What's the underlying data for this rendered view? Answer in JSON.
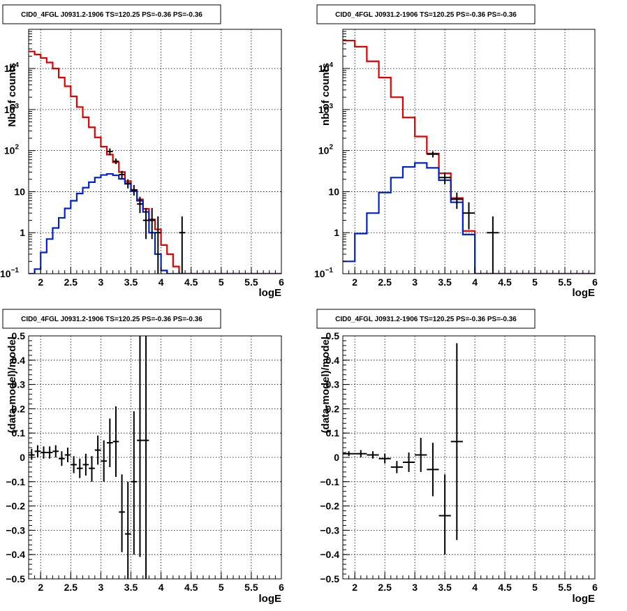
{
  "chart_data": [
    {
      "type": "line",
      "panel": "top-left",
      "title": "CID0_4FGL J0931.2-1906 TS=120.25 PS=-0.36 PS=-0.36",
      "xlabel": "logE",
      "ylabel": "Nb of counts",
      "xlim": [
        1.8,
        6.0
      ],
      "ylim": [
        0.1,
        90000
      ],
      "yscale": "log",
      "grid": true,
      "xticks": [
        {
          "v": 2,
          "label": "2"
        },
        {
          "v": 2.5,
          "label": "2.5"
        },
        {
          "v": 3,
          "label": "3"
        },
        {
          "v": 3.5,
          "label": "3.5"
        },
        {
          "v": 4,
          "label": "4"
        },
        {
          "v": 4.5,
          "label": "4.5"
        },
        {
          "v": 5,
          "label": "5"
        },
        {
          "v": 5.5,
          "label": "5.5"
        },
        {
          "v": 6,
          "label": "6"
        }
      ],
      "yticks": [
        {
          "v": 0.1,
          "label": "10",
          "sup": "−1"
        },
        {
          "v": 1,
          "label": "1"
        },
        {
          "v": 10,
          "label": "10"
        },
        {
          "v": 100,
          "label": "10",
          "sup": "2"
        },
        {
          "v": 1000,
          "label": "10",
          "sup": "3"
        },
        {
          "v": 10000,
          "label": "10",
          "sup": "4"
        }
      ],
      "series": [
        {
          "color": "#e00000",
          "style": "step",
          "x0": 1.8,
          "dx": 0.1,
          "values": [
            26000,
            22000,
            18000,
            14000,
            10000,
            6000,
            3700,
            2100,
            1150,
            650,
            370,
            210,
            125,
            80,
            52,
            30,
            18,
            11,
            6.5,
            3.8,
            2.1,
            1.2,
            0.5,
            0.3,
            0.15,
            0.1,
            0.1,
            0.1,
            0.1,
            0.1,
            0.1,
            0.1,
            0.1,
            0.1,
            0.1,
            0.1,
            0.1,
            0.1,
            0.1,
            0.1,
            0.1,
            0.1
          ]
        },
        {
          "color": "#0022cc",
          "style": "step",
          "x0": 1.8,
          "dx": 0.1,
          "values": [
            0.04,
            0.13,
            0.33,
            0.7,
            1.3,
            2.3,
            3.9,
            6.0,
            9.0,
            12.5,
            17.0,
            22.0,
            25.5,
            27.0,
            25.0,
            20.5,
            15.5,
            10.2,
            6.0,
            3.2,
            1.0,
            0.3,
            0.12,
            0.05,
            0.05,
            0.1,
            0.1,
            0.1,
            0.1,
            0.1,
            0.1,
            0.1,
            0.1,
            0.1,
            0.1,
            0.1,
            0.1,
            0.1,
            0.1,
            0.1,
            0.1,
            0.1
          ]
        },
        {
          "color": "#000000",
          "style": "errorbar",
          "xerr": 0.05,
          "points": [
            {
              "x": 3.15,
              "y": 95,
              "lo": 77,
              "hi": 113
            },
            {
              "x": 3.25,
              "y": 55,
              "lo": 47,
              "hi": 64
            },
            {
              "x": 3.35,
              "y": 26,
              "lo": 21,
              "hi": 32
            },
            {
              "x": 3.45,
              "y": 16,
              "lo": 12,
              "hi": 20
            },
            {
              "x": 3.55,
              "y": 11,
              "lo": 8,
              "hi": 14.5
            },
            {
              "x": 3.65,
              "y": 5,
              "lo": 3,
              "hi": 7.5
            },
            {
              "x": 3.75,
              "y": 2,
              "lo": 0.7,
              "hi": 4
            },
            {
              "x": 3.85,
              "y": 2,
              "lo": 0.7,
              "hi": 4
            },
            {
              "x": 3.95,
              "y": 1,
              "lo": 0.1,
              "hi": 2.5
            },
            {
              "x": 4.35,
              "y": 1,
              "lo": 0.1,
              "hi": 2.5
            }
          ]
        }
      ]
    },
    {
      "type": "line",
      "panel": "top-right",
      "title": "CID0_4FGL J0931.2-1906 TS=120.25 PS=-0.36 PS=-0.36",
      "xlabel": "logE",
      "ylabel": "nb of counts",
      "xlim": [
        1.8,
        6.0
      ],
      "ylim": [
        0.1,
        90000
      ],
      "yscale": "log",
      "grid": true,
      "xticks": [
        {
          "v": 2,
          "label": "2"
        },
        {
          "v": 2.5,
          "label": "2.5"
        },
        {
          "v": 3,
          "label": "3"
        },
        {
          "v": 3.5,
          "label": "3.5"
        },
        {
          "v": 4,
          "label": "4"
        },
        {
          "v": 4.5,
          "label": "4.5"
        },
        {
          "v": 5,
          "label": "5"
        },
        {
          "v": 5.5,
          "label": "5.5"
        },
        {
          "v": 6,
          "label": "6"
        }
      ],
      "yticks": [
        {
          "v": 0.1,
          "label": "10",
          "sup": "−1"
        },
        {
          "v": 1,
          "label": "1"
        },
        {
          "v": 10,
          "label": "10"
        },
        {
          "v": 100,
          "label": "10",
          "sup": "2"
        },
        {
          "v": 1000,
          "label": "10",
          "sup": "3"
        },
        {
          "v": 10000,
          "label": "10",
          "sup": "4"
        }
      ],
      "series": [
        {
          "color": "#e00000",
          "style": "step",
          "x0": 1.8,
          "dx": 0.2,
          "values": [
            48000,
            34000,
            15000,
            6000,
            2000,
            640,
            220,
            85,
            28,
            7,
            1.1,
            0.1,
            0.1,
            0.1,
            0.1,
            0.1,
            0.1,
            0.1,
            0.1,
            0.1,
            0.1
          ]
        },
        {
          "color": "#0022cc",
          "style": "step",
          "x0": 1.8,
          "dx": 0.2,
          "values": [
            0.2,
            0.95,
            3.0,
            9.5,
            22,
            40,
            50,
            38,
            19,
            5.5,
            0.9,
            0.05,
            0.1,
            0.1,
            0.1,
            0.1,
            0.1,
            0.1,
            0.1,
            0.1,
            0.1
          ]
        },
        {
          "color": "#000000",
          "style": "errorbar",
          "xerr": 0.1,
          "points": [
            {
              "x": 3.3,
              "y": 82,
              "lo": 68,
              "hi": 96
            },
            {
              "x": 3.5,
              "y": 22,
              "lo": 15,
              "hi": 28
            },
            {
              "x": 3.7,
              "y": 6.5,
              "lo": 3.8,
              "hi": 9.5
            },
            {
              "x": 3.9,
              "y": 3,
              "lo": 1.2,
              "hi": 5.5
            },
            {
              "x": 4.3,
              "y": 1,
              "lo": 0.1,
              "hi": 2.5
            }
          ]
        }
      ]
    },
    {
      "type": "scatter",
      "panel": "bottom-left",
      "title": "CID0_4FGL J0931.2-1906 TS=120.25 PS=-0.36 PS=-0.36",
      "xlabel": "logE",
      "ylabel": "(data-model)/model",
      "xlim": [
        1.8,
        6.0
      ],
      "ylim": [
        -0.5,
        0.5
      ],
      "yscale": "linear",
      "grid": true,
      "xticks": [
        {
          "v": 2,
          "label": "2"
        },
        {
          "v": 2.5,
          "label": "2.5"
        },
        {
          "v": 3,
          "label": "3"
        },
        {
          "v": 3.5,
          "label": "3.5"
        },
        {
          "v": 4,
          "label": "4"
        },
        {
          "v": 4.5,
          "label": "4.5"
        },
        {
          "v": 5,
          "label": "5"
        },
        {
          "v": 5.5,
          "label": "5.5"
        },
        {
          "v": 6,
          "label": "6"
        }
      ],
      "yticks": [
        {
          "v": -0.5,
          "label": "−0.5"
        },
        {
          "v": -0.4,
          "label": "−0.4"
        },
        {
          "v": -0.3,
          "label": "−0.3"
        },
        {
          "v": -0.2,
          "label": "−0.2"
        },
        {
          "v": -0.1,
          "label": "−0.1"
        },
        {
          "v": 0,
          "label": "0"
        },
        {
          "v": 0.1,
          "label": "0.1"
        },
        {
          "v": 0.2,
          "label": "0.2"
        },
        {
          "v": 0.3,
          "label": "0.3"
        },
        {
          "v": 0.4,
          "label": "0.4"
        },
        {
          "v": 0.5,
          "label": "0.5"
        }
      ],
      "series": [
        {
          "color": "#000000",
          "style": "errorbar",
          "xerr": 0.05,
          "points": [
            {
              "x": 1.85,
              "y": 0.01,
              "lo": -0.01,
              "hi": 0.035
            },
            {
              "x": 1.95,
              "y": 0.025,
              "lo": 0.0,
              "hi": 0.05
            },
            {
              "x": 2.05,
              "y": 0.02,
              "lo": -0.005,
              "hi": 0.045
            },
            {
              "x": 2.15,
              "y": 0.02,
              "lo": -0.005,
              "hi": 0.045
            },
            {
              "x": 2.25,
              "y": 0.025,
              "lo": 0.0,
              "hi": 0.05
            },
            {
              "x": 2.35,
              "y": -0.005,
              "lo": -0.035,
              "hi": 0.025
            },
            {
              "x": 2.45,
              "y": 0.01,
              "lo": -0.02,
              "hi": 0.04
            },
            {
              "x": 2.55,
              "y": -0.03,
              "lo": -0.065,
              "hi": 0.005
            },
            {
              "x": 2.65,
              "y": -0.045,
              "lo": -0.085,
              "hi": -0.005
            },
            {
              "x": 2.75,
              "y": -0.03,
              "lo": -0.075,
              "hi": 0.015
            },
            {
              "x": 2.85,
              "y": -0.045,
              "lo": -0.1,
              "hi": 0.005
            },
            {
              "x": 2.95,
              "y": 0.03,
              "lo": -0.03,
              "hi": 0.09
            },
            {
              "x": 3.05,
              "y": -0.015,
              "lo": -0.1,
              "hi": 0.07
            },
            {
              "x": 3.15,
              "y": 0.06,
              "lo": -0.04,
              "hi": 0.16
            },
            {
              "x": 3.25,
              "y": 0.065,
              "lo": -0.08,
              "hi": 0.21
            },
            {
              "x": 3.35,
              "y": -0.225,
              "lo": -0.39,
              "hi": -0.07
            },
            {
              "x": 3.45,
              "y": -0.315,
              "lo": -0.5,
              "hi": -0.1
            },
            {
              "x": 3.55,
              "y": -0.1,
              "lo": -0.4,
              "hi": 0.19
            },
            {
              "x": 3.65,
              "y": 0.07,
              "lo": -0.41,
              "hi": 0.5
            },
            {
              "x": 3.75,
              "y": 0.07,
              "lo": -0.5,
              "hi": 0.5
            }
          ]
        }
      ]
    },
    {
      "type": "scatter",
      "panel": "bottom-right",
      "title": "CID0_4FGL J0931.2-1906 TS=120.25 PS=-0.36 PS=-0.36",
      "xlabel": "logE",
      "ylabel": "(data-model)/model",
      "xlim": [
        1.8,
        6.0
      ],
      "ylim": [
        -0.5,
        0.5
      ],
      "yscale": "linear",
      "grid": true,
      "xticks": [
        {
          "v": 2,
          "label": "2"
        },
        {
          "v": 2.5,
          "label": "2.5"
        },
        {
          "v": 3,
          "label": "3"
        },
        {
          "v": 3.5,
          "label": "3.5"
        },
        {
          "v": 4,
          "label": "4"
        },
        {
          "v": 4.5,
          "label": "4.5"
        },
        {
          "v": 5,
          "label": "5"
        },
        {
          "v": 5.5,
          "label": "5.5"
        },
        {
          "v": 6,
          "label": "6"
        }
      ],
      "yticks": [
        {
          "v": -0.5,
          "label": "−0.5"
        },
        {
          "v": -0.4,
          "label": "−0.4"
        },
        {
          "v": -0.3,
          "label": "−0.3"
        },
        {
          "v": -0.2,
          "label": "−0.2"
        },
        {
          "v": -0.1,
          "label": "−0.1"
        },
        {
          "v": 0,
          "label": "0"
        },
        {
          "v": 0.1,
          "label": "0.1"
        },
        {
          "v": 0.2,
          "label": "0.2"
        },
        {
          "v": 0.3,
          "label": "0.3"
        },
        {
          "v": 0.4,
          "label": "0.4"
        },
        {
          "v": 0.5,
          "label": "0.5"
        }
      ],
      "series": [
        {
          "color": "#000000",
          "style": "errorbar",
          "xerr": 0.1,
          "points": [
            {
              "x": 1.9,
              "y": 0.015,
              "lo": 0.005,
              "hi": 0.025
            },
            {
              "x": 2.1,
              "y": 0.015,
              "lo": 0.0,
              "hi": 0.03
            },
            {
              "x": 2.3,
              "y": 0.01,
              "lo": -0.005,
              "hi": 0.025
            },
            {
              "x": 2.5,
              "y": -0.005,
              "lo": -0.025,
              "hi": 0.015
            },
            {
              "x": 2.7,
              "y": -0.04,
              "lo": -0.065,
              "hi": -0.015
            },
            {
              "x": 2.9,
              "y": -0.02,
              "lo": -0.06,
              "hi": 0.02
            },
            {
              "x": 3.1,
              "y": 0.01,
              "lo": -0.06,
              "hi": 0.08
            },
            {
              "x": 3.3,
              "y": -0.05,
              "lo": -0.16,
              "hi": 0.06
            },
            {
              "x": 3.5,
              "y": -0.24,
              "lo": -0.4,
              "hi": -0.07
            },
            {
              "x": 3.7,
              "y": 0.065,
              "lo": -0.34,
              "hi": 0.47
            }
          ]
        }
      ]
    }
  ]
}
